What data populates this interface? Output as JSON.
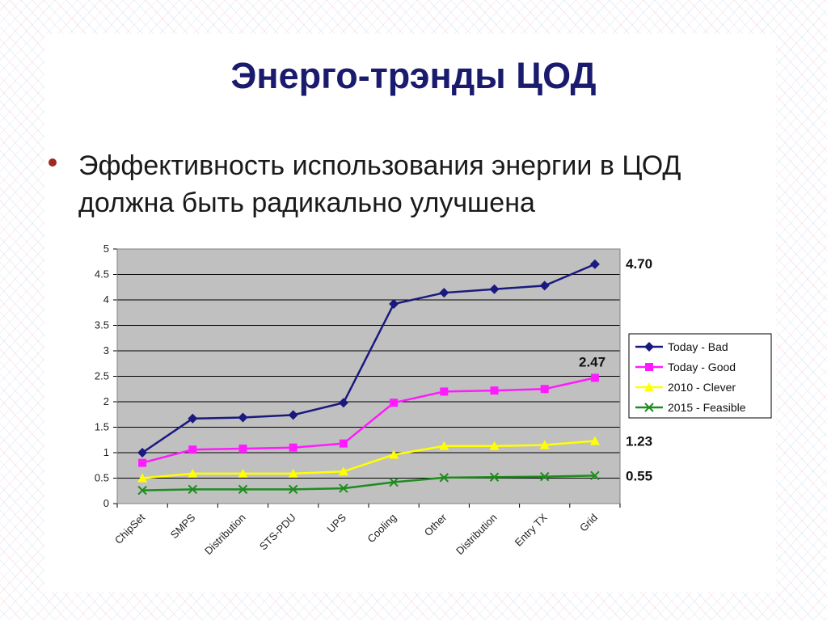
{
  "slide": {
    "title": "Энерго-трэнды ЦОД",
    "bullet": "Эффективность использования энергии в ЦОД должна быть радикально улучшена"
  },
  "chart_data": {
    "type": "line",
    "categories": [
      "ChipSet",
      "SMPS",
      "Distribution",
      "STS-PDU",
      "UPS",
      "Cooling",
      "Other",
      "Distribution",
      "Entry TX",
      "Grid"
    ],
    "ylim": [
      0,
      5
    ],
    "yticks": [
      "0",
      "0.5",
      "1",
      "1.5",
      "2",
      "2.5",
      "3",
      "3.5",
      "4",
      "4.5",
      "5"
    ],
    "grid": true,
    "legend_position": "right",
    "series": [
      {
        "name": "Today - Bad",
        "color": "#1a1a7e",
        "marker": "diamond",
        "values": [
          1.0,
          1.67,
          1.69,
          1.74,
          1.98,
          3.92,
          4.14,
          4.21,
          4.28,
          4.7
        ],
        "end_label": "4.70"
      },
      {
        "name": "Today - Good",
        "color": "#ff1aff",
        "marker": "square",
        "values": [
          0.8,
          1.06,
          1.08,
          1.1,
          1.18,
          1.98,
          2.2,
          2.22,
          2.25,
          2.47
        ],
        "end_label": "2.47"
      },
      {
        "name": "2010 - Clever",
        "color": "#ffff00",
        "marker": "triangle",
        "values": [
          0.5,
          0.59,
          0.59,
          0.59,
          0.63,
          0.96,
          1.13,
          1.13,
          1.15,
          1.23
        ],
        "end_label": "1.23"
      },
      {
        "name": "2015 - Feasible",
        "color": "#1e8c1e",
        "marker": "x",
        "values": [
          0.26,
          0.28,
          0.28,
          0.28,
          0.3,
          0.42,
          0.51,
          0.52,
          0.53,
          0.55
        ],
        "end_label": "0.55"
      }
    ]
  }
}
